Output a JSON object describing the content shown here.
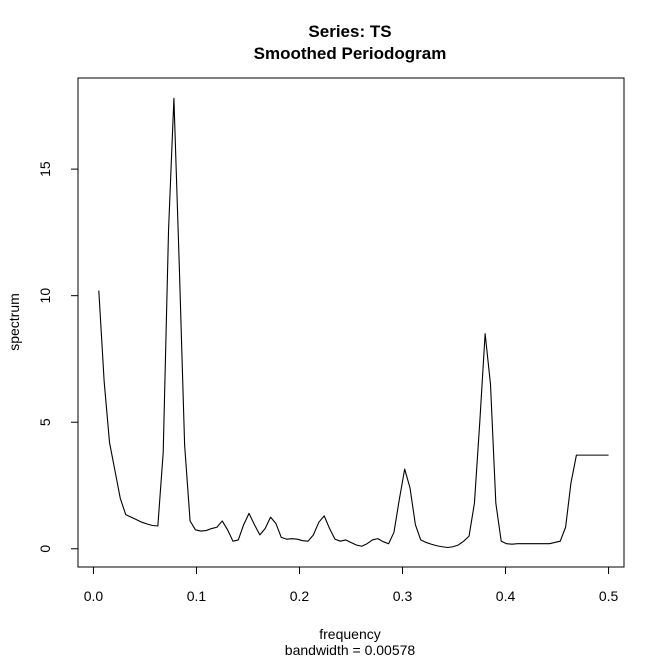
{
  "chart_data": {
    "type": "line",
    "title": "Series: TS",
    "subtitle": "Smoothed Periodogram",
    "xlabel": "frequency",
    "xlabel_note": "bandwidth = 0.00578",
    "ylabel": "spectrum",
    "xlim": [
      -0.015,
      0.515
    ],
    "ylim": [
      -0.72,
      18.6
    ],
    "x_ticks": [
      0.0,
      0.1,
      0.2,
      0.3,
      0.4,
      0.5
    ],
    "x_tick_labels": [
      "0.0",
      "0.1",
      "0.2",
      "0.3",
      "0.4",
      "0.5"
    ],
    "y_ticks": [
      0,
      5,
      10,
      15
    ],
    "y_tick_labels": [
      "0",
      "5",
      "10",
      "15"
    ],
    "grid": false,
    "series_color": "#000000",
    "x": [
      0.0052,
      0.0104,
      0.0156,
      0.0208,
      0.026,
      0.0313,
      0.0365,
      0.0417,
      0.0469,
      0.0521,
      0.0573,
      0.0625,
      0.0677,
      0.0729,
      0.0781,
      0.0833,
      0.0885,
      0.0938,
      0.099,
      0.1042,
      0.1094,
      0.1146,
      0.1198,
      0.125,
      0.1302,
      0.1354,
      0.1406,
      0.1458,
      0.151,
      0.1563,
      0.1615,
      0.1667,
      0.1719,
      0.1771,
      0.1823,
      0.1875,
      0.1927,
      0.1979,
      0.2031,
      0.2083,
      0.2135,
      0.2188,
      0.224,
      0.2292,
      0.2344,
      0.2396,
      0.2448,
      0.25,
      0.2552,
      0.2604,
      0.2656,
      0.2708,
      0.276,
      0.2813,
      0.2865,
      0.2917,
      0.2969,
      0.3021,
      0.3073,
      0.3125,
      0.3177,
      0.3229,
      0.3281,
      0.3333,
      0.3385,
      0.3438,
      0.349,
      0.3542,
      0.3594,
      0.3646,
      0.3698,
      0.375,
      0.3802,
      0.3854,
      0.3906,
      0.3958,
      0.401,
      0.4063,
      0.4115,
      0.4167,
      0.4219,
      0.4271,
      0.4323,
      0.4375,
      0.4427,
      0.4479,
      0.4531,
      0.4583,
      0.4635,
      0.4688,
      0.474,
      0.4792,
      0.4844,
      0.4896,
      0.4948,
      0.5
    ],
    "values": [
      10.2,
      6.6,
      4.2,
      3.1,
      2.0,
      1.35,
      1.25,
      1.15,
      1.05,
      0.98,
      0.92,
      0.9,
      3.8,
      12.6,
      17.8,
      11.2,
      4.1,
      1.1,
      0.75,
      0.7,
      0.72,
      0.8,
      0.85,
      1.1,
      0.75,
      0.3,
      0.35,
      0.95,
      1.4,
      0.95,
      0.55,
      0.8,
      1.25,
      1.0,
      0.45,
      0.38,
      0.4,
      0.38,
      0.32,
      0.3,
      0.55,
      1.05,
      1.3,
      0.8,
      0.38,
      0.3,
      0.35,
      0.25,
      0.15,
      0.1,
      0.2,
      0.35,
      0.4,
      0.28,
      0.2,
      0.65,
      1.95,
      3.15,
      2.4,
      0.95,
      0.35,
      0.25,
      0.18,
      0.12,
      0.08,
      0.05,
      0.08,
      0.15,
      0.3,
      0.5,
      1.8,
      5.0,
      8.5,
      6.5,
      1.8,
      0.3,
      0.2,
      0.18,
      0.2,
      0.2,
      0.2,
      0.2,
      0.2,
      0.2,
      0.2,
      0.25,
      0.3,
      0.85,
      2.6,
      3.7,
      3.7,
      3.7,
      3.7,
      3.7,
      3.7,
      3.7
    ]
  }
}
